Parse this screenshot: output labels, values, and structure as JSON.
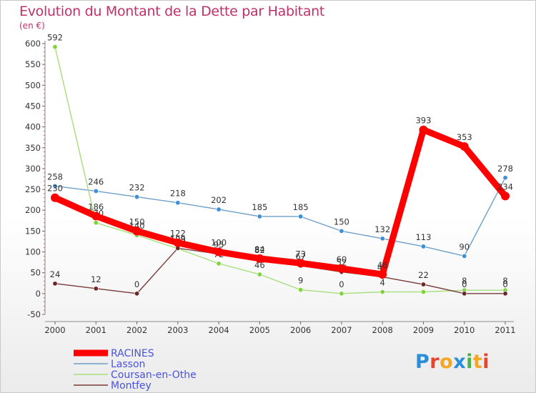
{
  "header": {
    "title": "Evolution du Montant de la Dette par Habitant",
    "unit": "(en €)"
  },
  "logo": {
    "letters": [
      "P",
      "r",
      "o",
      "x",
      "i",
      "t",
      "i"
    ],
    "colors": [
      "#2a8fd8",
      "#e8442a",
      "#f5a623",
      "#2a8fd8",
      "#4caf50",
      "#f5a623",
      "#e8442a"
    ]
  },
  "chart_data": {
    "type": "line",
    "title": "Evolution du Montant de la Dette par Habitant",
    "ylabel": "(en €)",
    "xlabel": "",
    "x": [
      "2000",
      "2001",
      "2002",
      "2003",
      "2004",
      "2005",
      "2006",
      "2007",
      "2008",
      "2009",
      "2010",
      "2011"
    ],
    "ylim": [
      -50,
      600
    ],
    "yticks": [
      -50,
      0,
      50,
      100,
      150,
      200,
      250,
      300,
      350,
      400,
      450,
      500,
      550,
      600
    ],
    "grid": false,
    "legend": "bottom-left",
    "series": [
      {
        "name": "Lasson",
        "color": "#6f9fc8",
        "marker": "#3f8fd8",
        "width": 1.4,
        "values": [
          258,
          246,
          232,
          218,
          202,
          185,
          185,
          150,
          132,
          113,
          90,
          278
        ],
        "labels": [
          "258",
          "246",
          "232",
          "218",
          "202",
          "185",
          "185",
          "150",
          "132",
          "113",
          "90",
          "278"
        ]
      },
      {
        "name": "Coursan-en-Othe",
        "color": "#a6de7c",
        "marker": "#7ed43a",
        "width": 1.4,
        "values": [
          592,
          170,
          140,
          108,
          72,
          46,
          9,
          0,
          4,
          4,
          8,
          8
        ],
        "labels": [
          "592",
          "170",
          "140",
          "108",
          "72",
          "46",
          "9",
          "0",
          "4",
          "",
          "8",
          "8"
        ]
      },
      {
        "name": "Montfey",
        "color": "#7a3a3a",
        "marker": "#6b2626",
        "width": 1.4,
        "values": [
          24,
          12,
          0,
          109,
          95,
          82,
          67,
          52,
          40,
          22,
          0,
          0
        ],
        "labels": [
          "24",
          "12",
          "0",
          "109",
          "95",
          "82",
          "67",
          "52",
          "40",
          "22",
          "0",
          "0"
        ]
      },
      {
        "name": "RACINES",
        "color": "#ff0000",
        "marker": "#ff0000",
        "width": 9,
        "values": [
          230,
          186,
          150,
          122,
          100,
          84,
          73,
          60,
          46,
          393,
          353,
          234
        ],
        "labels": [
          "230",
          "186",
          "150",
          "122",
          "100",
          "84",
          "73",
          "60",
          "46",
          "393",
          "353",
          "234"
        ]
      }
    ],
    "legend_order": [
      "RACINES",
      "Lasson",
      "Coursan-en-Othe",
      "Montfey"
    ]
  }
}
